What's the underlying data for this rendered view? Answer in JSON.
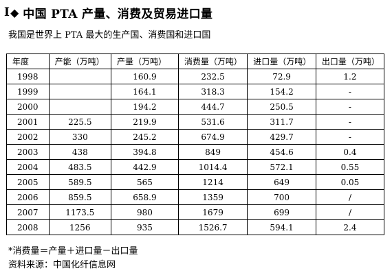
{
  "header": {
    "marker": "I",
    "diamond": "◆",
    "title": "中国 PTA 产量、消费及贸易进口量",
    "subtitle": "我国是世界上 PTA 最大的生产国、消费国和进口国"
  },
  "table": {
    "columns": [
      "年度",
      "产能（万吨）",
      "产量（万吨）",
      "消费量（万吨）",
      "进口量（万吨）",
      "出口量（万吨）"
    ],
    "rows": [
      [
        "1998",
        "",
        "160.9",
        "232.5",
        "72.9",
        "1.2"
      ],
      [
        "1999",
        "",
        "164.1",
        "318.3",
        "154.2",
        "-"
      ],
      [
        "2000",
        "",
        "194.2",
        "444.7",
        "250.5",
        "-"
      ],
      [
        "2001",
        "225.5",
        "219.9",
        "531.6",
        "311.7",
        "-"
      ],
      [
        "2002",
        "330",
        "245.2",
        "674.9",
        "429.7",
        "-"
      ],
      [
        "2003",
        "438",
        "394.8",
        "849",
        "454.6",
        "0.4"
      ],
      [
        "2004",
        "483.5",
        "442.9",
        "1014.4",
        "572.1",
        "0.55"
      ],
      [
        "2005",
        "589.5",
        "565",
        "1214",
        "649",
        "0.05"
      ],
      [
        "2006",
        "859.5",
        "658.9",
        "1359",
        "700",
        "/"
      ],
      [
        "2007",
        "1173.5",
        "980",
        "1679",
        "699",
        "/"
      ],
      [
        "2008",
        "1256",
        "935",
        "1526.7",
        "594.1",
        "2.4"
      ]
    ]
  },
  "footer": {
    "note": "*消费量＝产量＋进口量－出口量",
    "source": "资料来源：中国化纤信息网"
  }
}
